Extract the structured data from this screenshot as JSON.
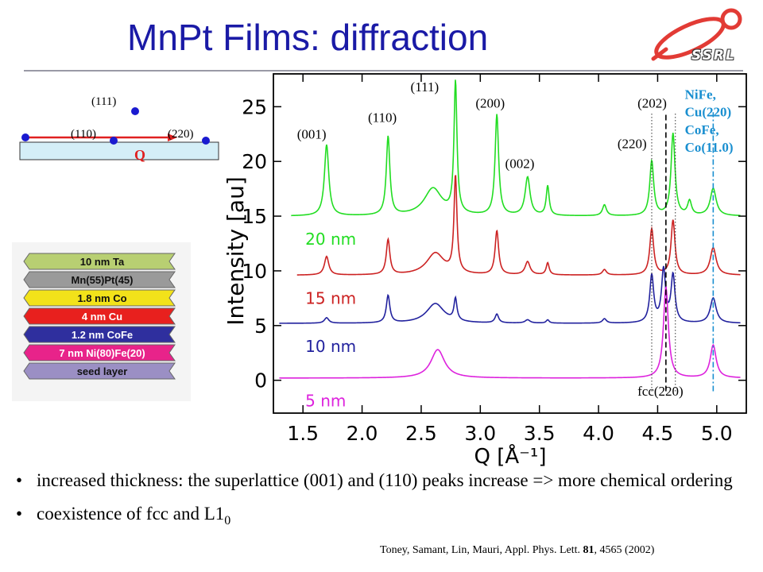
{
  "slide": {
    "title": "MnPt Films: diffraction",
    "logo_text": "SSRL",
    "bullets": [
      "increased thickness: the superlattice (001) and (110) peaks increase => more chemical ordering",
      "coexistence of fcc and L1"
    ],
    "bullet2_subscript": "0",
    "citation_prefix": "Toney, Samant, Lin, Mauri, Appl. Phys. Lett. ",
    "citation_volume": "81",
    "citation_suffix": ", 4565 (2002)"
  },
  "reciprocal_diagram": {
    "labels": {
      "p111": "(111)",
      "p110": "(110)",
      "p220": "(220)",
      "q": "Q"
    }
  },
  "layer_stack": {
    "layers": [
      {
        "label": "10 nm Ta",
        "color": "#b8cf72"
      },
      {
        "label": "Mn(55)Pt(45)",
        "color": "#9a9a9a"
      },
      {
        "label": "1.8 nm Co",
        "color": "#f2e21a"
      },
      {
        "label": "4 nm Cu",
        "color": "#e8201e"
      },
      {
        "label": "1.2 nm CoFe",
        "color": "#2f2f9e"
      },
      {
        "label": "7 nm Ni(80)Fe(20)",
        "color": "#e8238a"
      },
      {
        "label": "seed layer",
        "color": "#9b8fc4"
      }
    ]
  },
  "chart_data": {
    "type": "line",
    "xlabel": "Q [Å⁻¹]",
    "ylabel": "Intensity [au]",
    "xlim": [
      1.25,
      5.25
    ],
    "ylim": [
      -3,
      28
    ],
    "xticks": [
      1.5,
      2.0,
      2.5,
      3.0,
      3.5,
      4.0,
      4.5,
      5.0
    ],
    "xtick_labels": [
      "1.5",
      "2.0",
      "2.5",
      "3.0",
      "3.5",
      "4.0",
      "4.5",
      "5.0"
    ],
    "yticks": [
      0,
      5,
      10,
      15,
      20,
      25
    ],
    "ytick_labels": [
      "0",
      "5",
      "10",
      "15",
      "20",
      "25"
    ],
    "series": [
      {
        "name": "20 nm",
        "color": "#22dd22",
        "x_start": 1.4,
        "x_end": 5.2,
        "baseline": 15.0,
        "features": [
          {
            "x": 1.7,
            "h": 6.5,
            "w": 0.022
          },
          {
            "x": 2.22,
            "h": 7.2,
            "w": 0.018
          },
          {
            "x": 2.6,
            "h": 2.5,
            "w": 0.09
          },
          {
            "x": 2.79,
            "h": 12.0,
            "w": 0.015
          },
          {
            "x": 3.14,
            "h": 9.2,
            "w": 0.018
          },
          {
            "x": 3.4,
            "h": 3.5,
            "w": 0.025
          },
          {
            "x": 3.57,
            "h": 2.7,
            "w": 0.015
          },
          {
            "x": 4.05,
            "h": 1.0,
            "w": 0.02
          },
          {
            "x": 4.45,
            "h": 5.0,
            "w": 0.02
          },
          {
            "x": 4.63,
            "h": 7.5,
            "w": 0.02
          },
          {
            "x": 4.77,
            "h": 1.3,
            "w": 0.02
          },
          {
            "x": 4.97,
            "h": 2.5,
            "w": 0.03
          }
        ]
      },
      {
        "name": "15 nm",
        "color": "#cc2222",
        "x_start": 1.45,
        "x_end": 5.2,
        "baseline": 9.6,
        "features": [
          {
            "x": 1.7,
            "h": 1.7,
            "w": 0.022
          },
          {
            "x": 2.22,
            "h": 3.2,
            "w": 0.018
          },
          {
            "x": 2.62,
            "h": 2.0,
            "w": 0.09
          },
          {
            "x": 2.79,
            "h": 8.8,
            "w": 0.015
          },
          {
            "x": 3.14,
            "h": 4.0,
            "w": 0.018
          },
          {
            "x": 3.4,
            "h": 1.2,
            "w": 0.025
          },
          {
            "x": 3.57,
            "h": 1.1,
            "w": 0.015
          },
          {
            "x": 4.05,
            "h": 0.5,
            "w": 0.02
          },
          {
            "x": 4.45,
            "h": 4.2,
            "w": 0.02
          },
          {
            "x": 4.63,
            "h": 5.0,
            "w": 0.02
          },
          {
            "x": 4.97,
            "h": 2.5,
            "w": 0.03
          }
        ]
      },
      {
        "name": "10 nm",
        "color": "#22229e",
        "x_start": 1.3,
        "x_end": 5.2,
        "baseline": 5.2,
        "features": [
          {
            "x": 1.7,
            "h": 0.5,
            "w": 0.022
          },
          {
            "x": 2.22,
            "h": 2.5,
            "w": 0.018
          },
          {
            "x": 2.62,
            "h": 1.8,
            "w": 0.09
          },
          {
            "x": 2.79,
            "h": 2.0,
            "w": 0.015
          },
          {
            "x": 3.14,
            "h": 0.8,
            "w": 0.018
          },
          {
            "x": 3.4,
            "h": 0.3,
            "w": 0.025
          },
          {
            "x": 3.57,
            "h": 0.3,
            "w": 0.015
          },
          {
            "x": 4.05,
            "h": 0.4,
            "w": 0.02
          },
          {
            "x": 4.45,
            "h": 4.3,
            "w": 0.02
          },
          {
            "x": 4.55,
            "h": 4.8,
            "w": 0.02
          },
          {
            "x": 4.63,
            "h": 4.3,
            "w": 0.02
          },
          {
            "x": 4.97,
            "h": 2.3,
            "w": 0.03
          }
        ]
      },
      {
        "name": "5 nm",
        "color": "#dd22dd",
        "x_start": 1.3,
        "x_end": 5.2,
        "baseline": 0.2,
        "features": [
          {
            "x": 2.64,
            "h": 2.6,
            "w": 0.07
          },
          {
            "x": 4.57,
            "h": 8.3,
            "w": 0.025
          },
          {
            "x": 4.97,
            "h": 3.0,
            "w": 0.03
          }
        ]
      }
    ],
    "reference_lines": [
      {
        "x": 4.45,
        "style": "dotted",
        "color": "#333333"
      },
      {
        "x": 4.57,
        "style": "dashed",
        "color": "#000000"
      },
      {
        "x": 4.65,
        "style": "dotted",
        "color": "#333333"
      },
      {
        "x": 4.97,
        "style": "dashdot",
        "color": "#1a8fd0"
      }
    ],
    "peak_labels": [
      {
        "text": "(001)",
        "x": 1.45,
        "y": 22.1
      },
      {
        "text": "(110)",
        "x": 2.05,
        "y": 23.6
      },
      {
        "text": "(111)",
        "x": 2.41,
        "y": 26.4
      },
      {
        "text": "(200)",
        "x": 2.96,
        "y": 24.9
      },
      {
        "text": "(002)",
        "x": 3.21,
        "y": 19.4
      },
      {
        "text": "(202)",
        "x": 4.33,
        "y": 24.9
      },
      {
        "text": "(220)",
        "x": 4.16,
        "y": 21.2
      },
      {
        "text": "fcc(220)",
        "x": 4.33,
        "y": -1.4
      }
    ],
    "annotation_lines": [
      "NiFe,",
      "Cu(220)",
      "CoFe,",
      "Co(11.0)"
    ],
    "annotation_color": "#1a8fd0",
    "grid": false
  }
}
